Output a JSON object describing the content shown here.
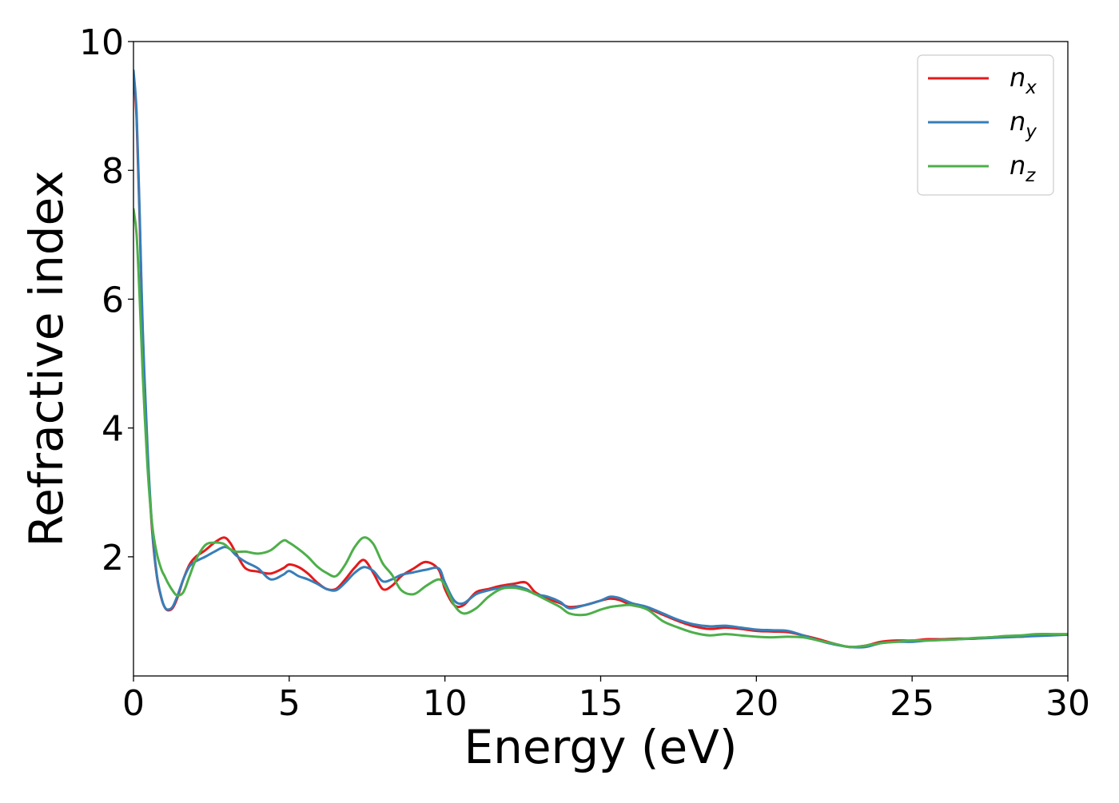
{
  "chart_data": {
    "type": "line",
    "xlabel": "Energy (eV)",
    "ylabel": "Refractive index",
    "xlim": [
      0,
      30
    ],
    "ylim": [
      0.15,
      10
    ],
    "xticks": [
      "0",
      "5",
      "10",
      "15",
      "20",
      "25",
      "30"
    ],
    "yticks": [
      "2",
      "4",
      "6",
      "8",
      "10"
    ],
    "grid": false,
    "legend_position": "top-right",
    "series": [
      {
        "name": "n",
        "subscript": "x",
        "color": "#e41a1c",
        "x": [
          0,
          0.1,
          0.2,
          0.3,
          0.45,
          0.6,
          0.75,
          0.9,
          1.0,
          1.1,
          1.25,
          1.4,
          1.6,
          1.8,
          2.0,
          2.3,
          2.6,
          2.9,
          3.1,
          3.3,
          3.6,
          4.0,
          4.4,
          4.8,
          5.0,
          5.3,
          5.6,
          5.9,
          6.2,
          6.5,
          6.8,
          7.1,
          7.4,
          7.7,
          8.0,
          8.3,
          8.6,
          9.0,
          9.4,
          9.8,
          10.0,
          10.3,
          10.6,
          11.0,
          11.4,
          11.8,
          12.2,
          12.6,
          12.9,
          13.3,
          13.7,
          14.0,
          14.5,
          15.0,
          15.3,
          15.6,
          16.0,
          16.5,
          17.0,
          17.5,
          18.0,
          18.5,
          19.0,
          19.5,
          20.0,
          20.5,
          21.0,
          21.5,
          22.0,
          22.5,
          23.0,
          23.5,
          24.0,
          24.5,
          25.0,
          25.5,
          26.0,
          26.5,
          27.0,
          27.5,
          28.0,
          28.5,
          29.0,
          29.5,
          30.0
        ],
        "y": [
          9.5,
          8.8,
          7.2,
          5.4,
          3.6,
          2.4,
          1.7,
          1.35,
          1.22,
          1.17,
          1.2,
          1.35,
          1.65,
          1.88,
          2.0,
          2.1,
          2.22,
          2.3,
          2.22,
          2.05,
          1.82,
          1.77,
          1.74,
          1.82,
          1.88,
          1.84,
          1.74,
          1.6,
          1.5,
          1.5,
          1.65,
          1.83,
          1.95,
          1.75,
          1.5,
          1.55,
          1.7,
          1.82,
          1.92,
          1.8,
          1.5,
          1.25,
          1.25,
          1.45,
          1.5,
          1.55,
          1.58,
          1.6,
          1.45,
          1.35,
          1.28,
          1.22,
          1.25,
          1.32,
          1.35,
          1.33,
          1.25,
          1.2,
          1.1,
          1.0,
          0.92,
          0.88,
          0.9,
          0.88,
          0.85,
          0.84,
          0.83,
          0.78,
          0.72,
          0.65,
          0.6,
          0.62,
          0.68,
          0.7,
          0.7,
          0.72,
          0.72,
          0.73,
          0.73,
          0.75,
          0.76,
          0.76,
          0.78,
          0.79,
          0.79
        ]
      },
      {
        "name": "n",
        "subscript": "y",
        "color": "#377eb8",
        "x": [
          0,
          0.1,
          0.2,
          0.3,
          0.45,
          0.6,
          0.75,
          0.9,
          1.0,
          1.1,
          1.25,
          1.4,
          1.6,
          1.8,
          2.0,
          2.3,
          2.6,
          2.9,
          3.1,
          3.3,
          3.6,
          4.0,
          4.4,
          4.8,
          5.0,
          5.3,
          5.6,
          5.9,
          6.2,
          6.5,
          6.8,
          7.1,
          7.4,
          7.7,
          8.0,
          8.3,
          8.6,
          9.0,
          9.4,
          9.8,
          10.0,
          10.3,
          10.6,
          11.0,
          11.4,
          11.8,
          12.2,
          12.6,
          12.9,
          13.3,
          13.7,
          14.0,
          14.5,
          15.0,
          15.3,
          15.6,
          16.0,
          16.5,
          17.0,
          17.5,
          18.0,
          18.5,
          19.0,
          19.5,
          20.0,
          20.5,
          21.0,
          21.5,
          22.0,
          22.5,
          23.0,
          23.5,
          24.0,
          24.5,
          25.0,
          25.5,
          26.0,
          26.5,
          27.0,
          27.5,
          28.0,
          28.5,
          29.0,
          29.5,
          30.0
        ],
        "y": [
          9.55,
          8.9,
          7.3,
          5.5,
          3.7,
          2.45,
          1.72,
          1.36,
          1.22,
          1.18,
          1.22,
          1.38,
          1.65,
          1.85,
          1.93,
          2.0,
          2.08,
          2.15,
          2.12,
          2.02,
          1.92,
          1.82,
          1.65,
          1.72,
          1.78,
          1.7,
          1.65,
          1.58,
          1.5,
          1.48,
          1.6,
          1.75,
          1.84,
          1.78,
          1.62,
          1.65,
          1.72,
          1.76,
          1.8,
          1.82,
          1.6,
          1.32,
          1.28,
          1.42,
          1.48,
          1.52,
          1.55,
          1.5,
          1.42,
          1.38,
          1.3,
          1.2,
          1.25,
          1.32,
          1.38,
          1.36,
          1.28,
          1.22,
          1.12,
          1.02,
          0.95,
          0.92,
          0.93,
          0.9,
          0.87,
          0.86,
          0.85,
          0.78,
          0.7,
          0.64,
          0.6,
          0.6,
          0.66,
          0.68,
          0.68,
          0.7,
          0.71,
          0.72,
          0.73,
          0.74,
          0.75,
          0.76,
          0.77,
          0.78,
          0.79
        ]
      },
      {
        "name": "n",
        "subscript": "z",
        "color": "#4daf4a",
        "x": [
          0,
          0.1,
          0.2,
          0.3,
          0.45,
          0.6,
          0.75,
          0.9,
          1.0,
          1.1,
          1.25,
          1.4,
          1.6,
          1.8,
          2.0,
          2.3,
          2.6,
          2.9,
          3.1,
          3.3,
          3.6,
          4.0,
          4.4,
          4.8,
          5.0,
          5.3,
          5.6,
          5.9,
          6.2,
          6.5,
          6.8,
          7.1,
          7.4,
          7.7,
          8.0,
          8.3,
          8.6,
          9.0,
          9.4,
          9.8,
          10.0,
          10.3,
          10.6,
          11.0,
          11.4,
          11.8,
          12.2,
          12.6,
          12.9,
          13.3,
          13.7,
          14.0,
          14.5,
          15.0,
          15.3,
          15.6,
          16.0,
          16.5,
          17.0,
          17.5,
          18.0,
          18.5,
          19.0,
          19.5,
          20.0,
          20.5,
          21.0,
          21.5,
          22.0,
          22.5,
          23.0,
          23.5,
          24.0,
          24.5,
          25.0,
          25.5,
          26.0,
          26.5,
          27.0,
          27.5,
          28.0,
          28.5,
          29.0,
          29.5,
          30.0
        ],
        "y": [
          7.4,
          7.0,
          6.0,
          4.8,
          3.4,
          2.5,
          2.05,
          1.8,
          1.7,
          1.6,
          1.48,
          1.4,
          1.45,
          1.7,
          1.95,
          2.18,
          2.22,
          2.2,
          2.12,
          2.08,
          2.08,
          2.05,
          2.1,
          2.25,
          2.22,
          2.12,
          2.0,
          1.85,
          1.75,
          1.7,
          1.88,
          2.15,
          2.3,
          2.2,
          1.9,
          1.72,
          1.48,
          1.42,
          1.55,
          1.65,
          1.55,
          1.25,
          1.12,
          1.2,
          1.38,
          1.5,
          1.52,
          1.48,
          1.42,
          1.32,
          1.22,
          1.12,
          1.1,
          1.18,
          1.22,
          1.24,
          1.25,
          1.18,
          1.0,
          0.9,
          0.82,
          0.78,
          0.8,
          0.78,
          0.76,
          0.75,
          0.76,
          0.75,
          0.7,
          0.65,
          0.6,
          0.62,
          0.66,
          0.68,
          0.7,
          0.7,
          0.71,
          0.72,
          0.74,
          0.75,
          0.77,
          0.78,
          0.8,
          0.8,
          0.8
        ]
      }
    ]
  }
}
